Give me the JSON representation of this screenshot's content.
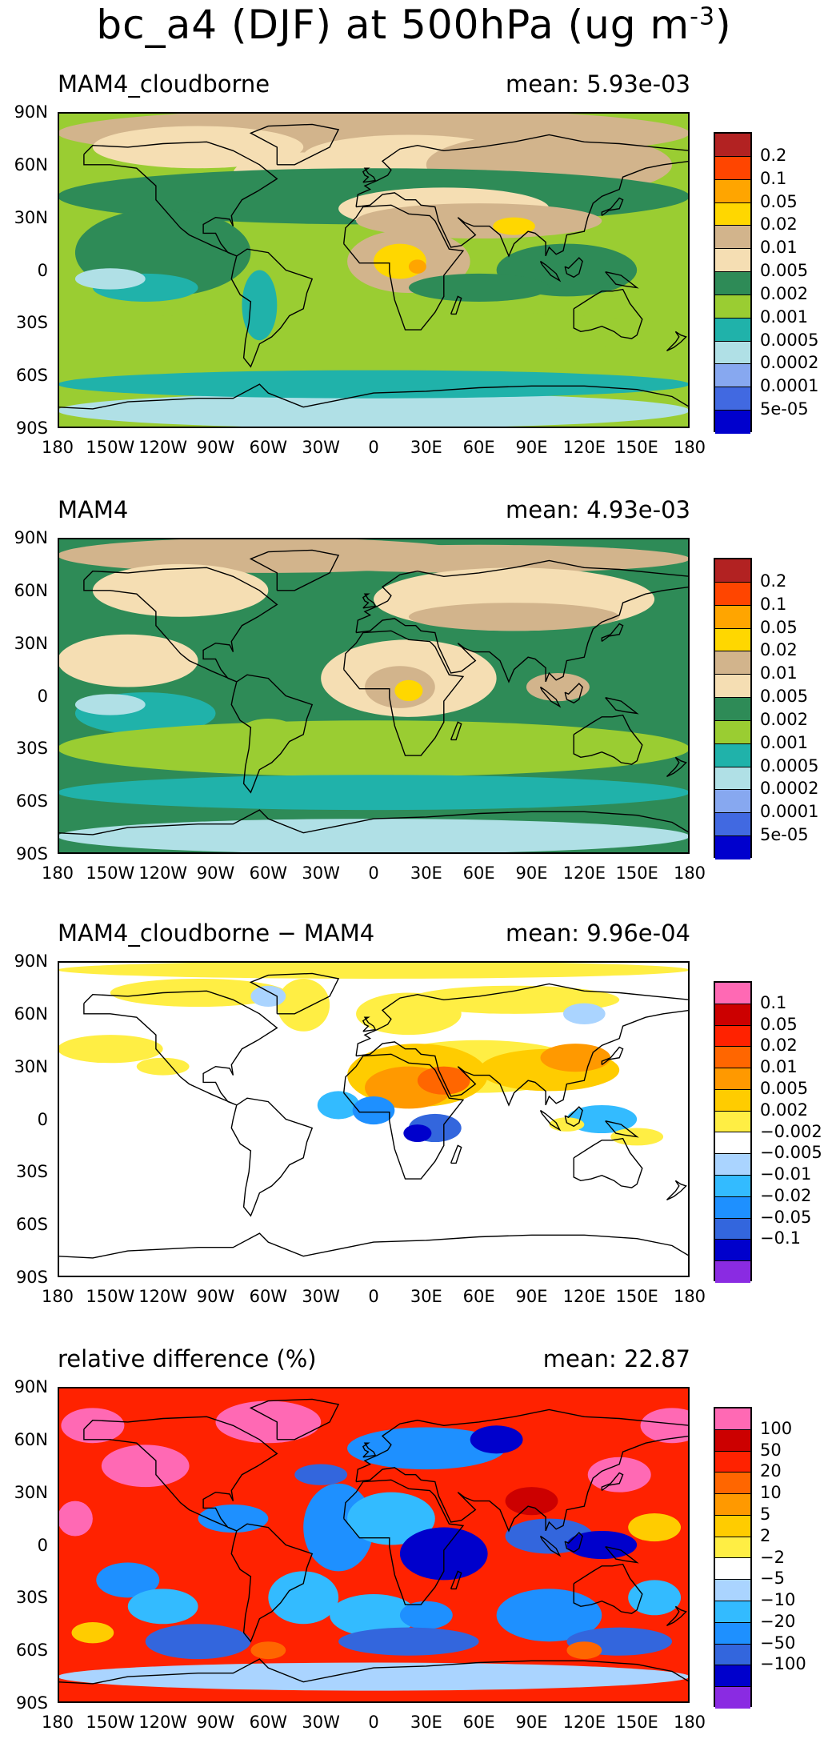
{
  "title": {
    "main": "bc_a4 (DJF) at 500hPa (ug m",
    "exp": "-3",
    "close": ")"
  },
  "lat_labels": [
    "90N",
    "60N",
    "30N",
    "0",
    "30S",
    "60S",
    "90S"
  ],
  "lon_labels": [
    "180",
    "150W",
    "120W",
    "90W",
    "60W",
    "30W",
    "0",
    "30E",
    "60E",
    "90E",
    "120E",
    "150E",
    "180"
  ],
  "colors": {
    "abs": [
      "#b22222",
      "#ff4500",
      "#ffa500",
      "#ffd700",
      "#d2b48c",
      "#f5deb3",
      "#2e8b57",
      "#9acd32",
      "#20b2aa",
      "#b0e0e6",
      "#87a8f0",
      "#4169e1",
      "#0000cd"
    ],
    "diff": [
      "#ff69b4",
      "#cc0000",
      "#ff2200",
      "#ff6600",
      "#ff9900",
      "#ffcc00",
      "#ffee44",
      "#ffffff",
      "#aad4ff",
      "#33bbff",
      "#1e90ff",
      "#3366dd",
      "#0000cc",
      "#8a2be2"
    ]
  },
  "panels": [
    {
      "title": "MAM4_cloudborne",
      "mean": "mean: 5.93e-03",
      "scale": "abs",
      "levels": [
        "0.2",
        "0.1",
        "0.05",
        "0.02",
        "0.01",
        "0.005",
        "0.002",
        "0.001",
        "0.0005",
        "0.0002",
        "0.0001",
        "5e-05"
      ]
    },
    {
      "title": "MAM4",
      "mean": "mean: 4.93e-03",
      "scale": "abs",
      "levels": [
        "0.2",
        "0.1",
        "0.05",
        "0.02",
        "0.01",
        "0.005",
        "0.002",
        "0.001",
        "0.0005",
        "0.0002",
        "0.0001",
        "5e-05"
      ]
    },
    {
      "title": "MAM4_cloudborne − MAM4",
      "mean": "mean: 9.96e-04",
      "scale": "diff",
      "levels": [
        "0.1",
        "0.05",
        "0.02",
        "0.01",
        "0.005",
        "0.002",
        "−0.002",
        "−0.005",
        "−0.01",
        "−0.02",
        "−0.05",
        "−0.1"
      ]
    },
    {
      "title": "relative difference (%)",
      "mean": "mean: 22.87",
      "scale": "diff",
      "levels": [
        "100",
        "50",
        "20",
        "10",
        "5",
        "2",
        "−2",
        "−5",
        "−10",
        "−20",
        "−50",
        "−100"
      ]
    }
  ]
}
